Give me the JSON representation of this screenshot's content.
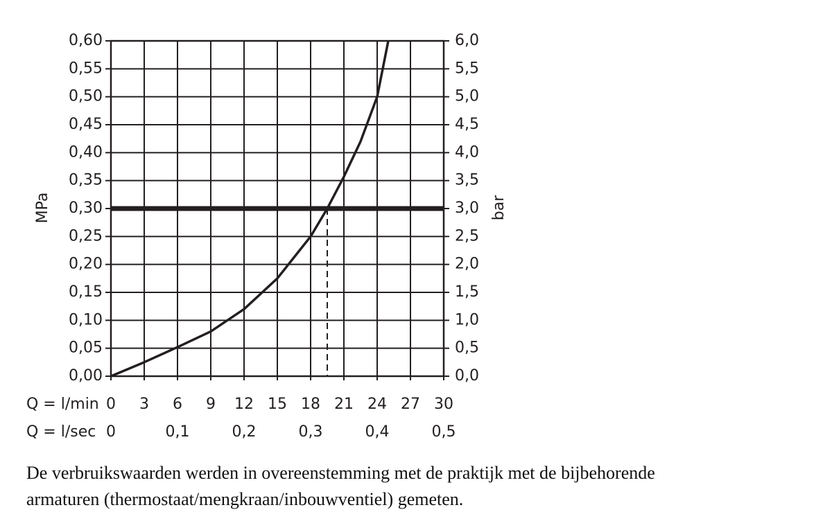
{
  "chart_data": {
    "type": "line",
    "y_label": "MPa",
    "y2_label": "bar",
    "x_label": "Q = l/min",
    "x2_label": "Q = l/sec",
    "x": [
      0,
      3,
      6,
      9,
      12,
      15,
      18,
      19.5,
      21,
      22.5,
      24,
      25
    ],
    "values": [
      0,
      0.025,
      0.052,
      0.08,
      0.12,
      0.175,
      0.25,
      0.3,
      0.357,
      0.42,
      0.5,
      0.6
    ],
    "color": "#231f20",
    "hline": 0.3,
    "vline": 19.5,
    "xlim": [
      0,
      30
    ],
    "xticks": [
      0,
      3,
      6,
      9,
      12,
      15,
      18,
      21,
      24,
      27,
      30
    ],
    "x2lim": [
      0,
      0.5
    ],
    "x2ticks": [
      0,
      {
        "value": 0.1,
        "label": "0,1"
      },
      {
        "value": 0.2,
        "label": "0,2"
      },
      {
        "value": 0.3,
        "label": "0,3"
      },
      {
        "value": 0.4,
        "label": "0,4"
      },
      {
        "value": 0.5,
        "label": "0,5"
      }
    ],
    "ylim": [
      0,
      0.6
    ],
    "yticks": [
      {
        "value": 0,
        "label": "0,00"
      },
      {
        "value": 0.05,
        "label": "0,05"
      },
      {
        "value": 0.1,
        "label": "0,10"
      },
      {
        "value": 0.15,
        "label": "0,15"
      },
      {
        "value": 0.2,
        "label": "0,20"
      },
      {
        "value": 0.25,
        "label": "0,25"
      },
      {
        "value": 0.3,
        "label": "0,30"
      },
      {
        "value": 0.35,
        "label": "0,35"
      },
      {
        "value": 0.4,
        "label": "0,40"
      },
      {
        "value": 0.45,
        "label": "0,45"
      },
      {
        "value": 0.5,
        "label": "0,50"
      },
      {
        "value": 0.55,
        "label": "0,55"
      },
      {
        "value": 0.6,
        "label": "0,60"
      }
    ],
    "y2lim": [
      0,
      6
    ],
    "y2ticks": [
      {
        "value": 0,
        "label": "0,0"
      },
      {
        "value": 0.5,
        "label": "0,5"
      },
      {
        "value": 1,
        "label": "1,0"
      },
      {
        "value": 1.5,
        "label": "1,5"
      },
      {
        "value": 2,
        "label": "2,0"
      },
      {
        "value": 2.5,
        "label": "2,5"
      },
      {
        "value": 3,
        "label": "3,0"
      },
      {
        "value": 3.5,
        "label": "3,5"
      },
      {
        "value": 4,
        "label": "4,0"
      },
      {
        "value": 4.5,
        "label": "4,5"
      },
      {
        "value": 5,
        "label": "5,0"
      },
      {
        "value": 5.5,
        "label": "5,5"
      },
      {
        "value": 6,
        "label": "6,0"
      }
    ],
    "grid": true,
    "caption": [
      "De verbruikswaarden werden in overeenstemming met de praktijk met de bijbehorende",
      "armaturen (thermostaat/mengkraan/inbouwventiel) gemeten."
    ]
  }
}
